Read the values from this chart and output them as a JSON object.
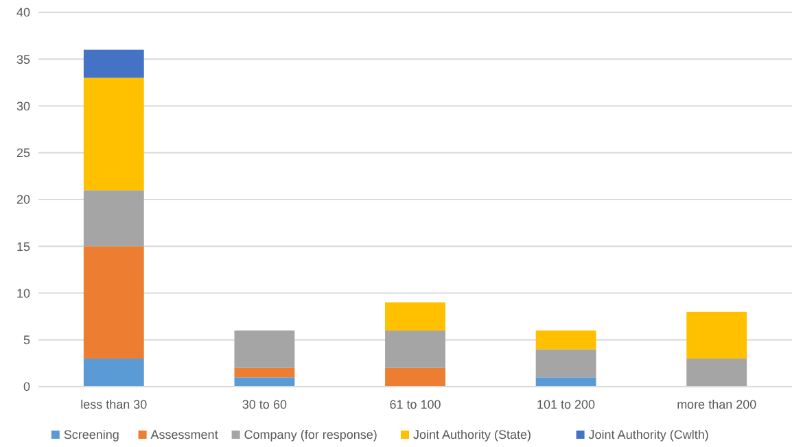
{
  "chart_data": {
    "type": "bar",
    "stacked": true,
    "categories": [
      "less than 30",
      "30 to 60",
      "61 to 100",
      "101 to 200",
      "more than 200"
    ],
    "series": [
      {
        "name": "Screening",
        "color": "#5b9bd5",
        "values": [
          3,
          1,
          0,
          1,
          0
        ]
      },
      {
        "name": "Assessment",
        "color": "#ed7d31",
        "values": [
          12,
          1,
          2,
          0,
          0
        ]
      },
      {
        "name": "Company (for response)",
        "color": "#a5a5a5",
        "values": [
          6,
          4,
          4,
          3,
          3
        ]
      },
      {
        "name": "Joint Authority (State)",
        "color": "#ffc000",
        "values": [
          12,
          0,
          3,
          2,
          5
        ]
      },
      {
        "name": "Joint Authority (Cwlth)",
        "color": "#4472c4",
        "values": [
          3,
          0,
          0,
          0,
          0
        ]
      }
    ],
    "ylim": [
      0,
      40
    ],
    "yticks": [
      0,
      5,
      10,
      15,
      20,
      25,
      30,
      35,
      40
    ],
    "grid": "y",
    "legend": "bottom"
  }
}
